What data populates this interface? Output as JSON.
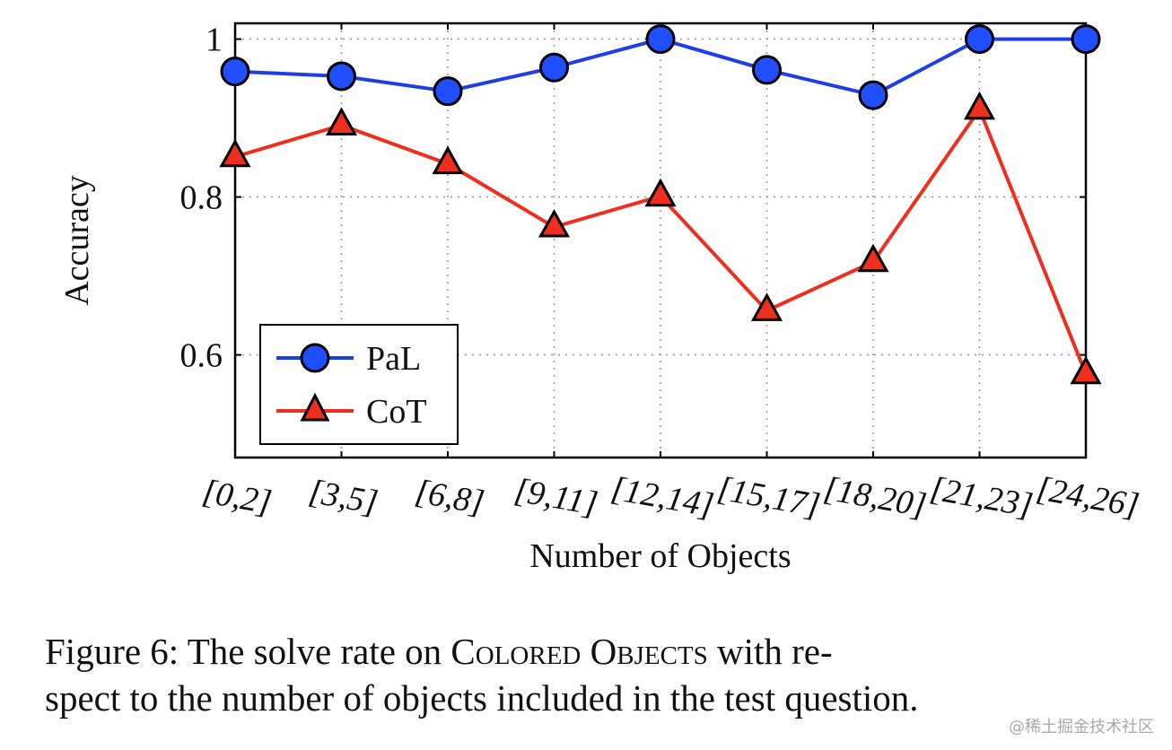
{
  "chart_data": {
    "type": "line",
    "categories": [
      "[0,2]",
      "[3,5]",
      "[6,8]",
      "[9,11]",
      "[12,14]",
      "[15,17]",
      "[18,20]",
      "[21,23]",
      "[24,26]"
    ],
    "series": [
      {
        "name": "PaL",
        "values": [
          0.959,
          0.953,
          0.934,
          0.964,
          1.0,
          0.961,
          0.929,
          1.0,
          1.0
        ],
        "color": "#1f3fe0",
        "marker": "circle",
        "marker_color": "#1f4fff"
      },
      {
        "name": "CoT",
        "values": [
          0.851,
          0.891,
          0.842,
          0.762,
          0.801,
          0.656,
          0.718,
          0.911,
          0.576
        ],
        "color": "#ee2e1e",
        "marker": "triangle",
        "marker_color": "#ee2e1e"
      }
    ],
    "xlabel": "Number of Objects",
    "ylabel": "Accuracy",
    "ylim": [
      0.47,
      1.02
    ],
    "yticks": [
      0.6,
      0.8,
      1.0
    ],
    "ytick_labels": [
      "0.6",
      "0.8",
      "1"
    ],
    "grid": true,
    "legend_position": "bottom-left"
  },
  "caption": {
    "prefix": "Figure 6: The solve rate on ",
    "smallcaps": "Colored Objects",
    "suffix_line1": " with re-",
    "line2": "spect to the number of objects included in the test question."
  },
  "watermark": "@稀土掘金技术社区"
}
